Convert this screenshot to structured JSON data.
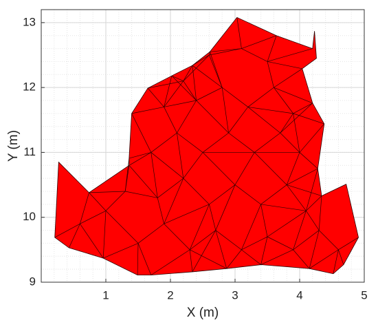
{
  "chart_data": {
    "type": "mesh",
    "x_label": "X (m)",
    "y_label": "Y (m)",
    "xlim": [
      0,
      5
    ],
    "ylim": [
      9,
      13.2
    ],
    "xticks": [
      1,
      2,
      3,
      4,
      5
    ],
    "yticks": [
      9,
      10,
      11,
      12,
      13
    ],
    "grid": true,
    "minor_grid": true,
    "color": "#ff0000",
    "edge_color": "#2a0000",
    "boundary": {
      "x": [
        0.21,
        0.27,
        0.74,
        1.36,
        1.36,
        1.4,
        1.65,
        2.02,
        2.34,
        2.61,
        3.03,
        3.64,
        4.2,
        4.23,
        4.26,
        4.04,
        4.2,
        4.38,
        4.28,
        4.34,
        4.72,
        4.91,
        4.68,
        4.52,
        4.15,
        3.4,
        2.87,
        2.34,
        1.7,
        1.49,
        0.96,
        0.43
      ],
      "y": [
        9.69,
        10.85,
        10.38,
        10.8,
        10.91,
        11.6,
        11.99,
        12.18,
        12.34,
        12.55,
        13.08,
        12.8,
        12.6,
        12.87,
        12.45,
        12.29,
        11.76,
        11.44,
        10.75,
        10.33,
        10.51,
        9.69,
        9.27,
        9.13,
        9.21,
        9.27,
        9.21,
        9.16,
        9.11,
        9.11,
        9.37,
        9.53
      ]
    },
    "nodes": {
      "x": [
        0.6,
        1.0,
        1.5,
        1.9,
        2.3,
        2.7,
        3.1,
        3.5,
        3.9,
        4.3,
        4.6,
        1.3,
        1.8,
        2.2,
        2.6,
        3.0,
        3.4,
        3.8,
        4.1,
        1.7,
        2.1,
        2.5,
        2.9,
        3.3,
        3.7,
        4.0,
        2.4,
        2.8,
        3.2,
        3.6,
        3.9,
        2.6,
        3.1,
        3.5,
        1.9,
        2.2
      ],
      "y": [
        9.9,
        10.1,
        9.6,
        9.9,
        9.5,
        9.8,
        9.5,
        9.7,
        9.5,
        9.8,
        9.5,
        10.4,
        10.3,
        10.6,
        10.2,
        10.5,
        10.2,
        10.5,
        10.1,
        11.0,
        11.3,
        11.0,
        11.3,
        11.0,
        11.3,
        11.0,
        11.8,
        12.0,
        11.7,
        12.0,
        11.6,
        12.5,
        12.6,
        12.4,
        11.7,
        12.1
      ]
    }
  }
}
